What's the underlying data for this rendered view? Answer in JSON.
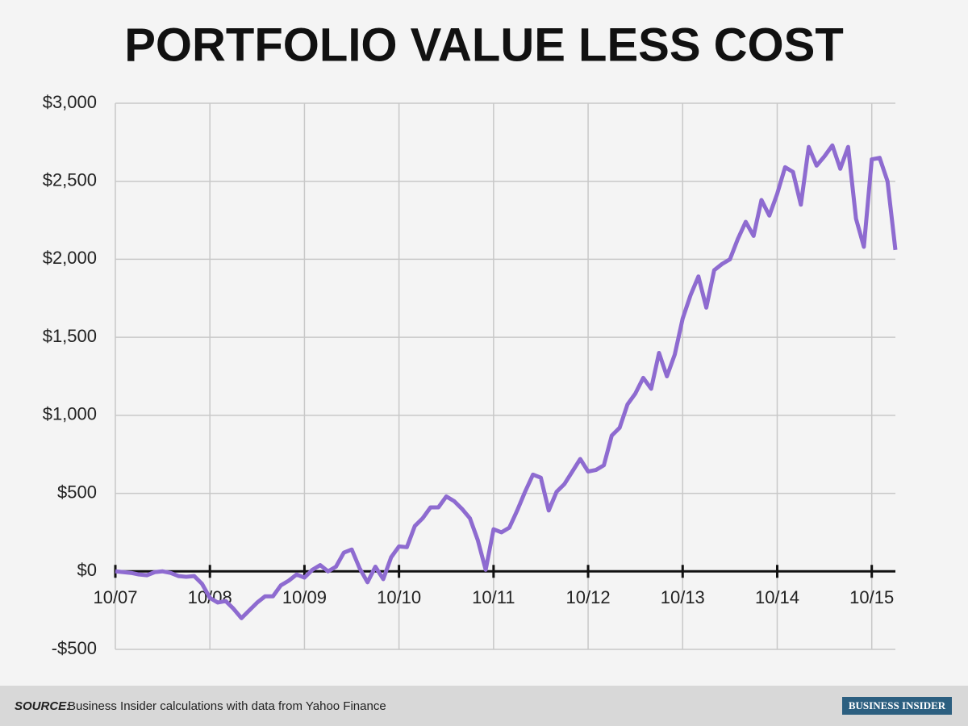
{
  "chart_data": {
    "type": "line",
    "title": "PORTFOLIO VALUE LESS COST",
    "categories": [
      "10/07",
      null,
      null,
      null,
      null,
      null,
      null,
      null,
      null,
      null,
      null,
      null,
      "10/08",
      null,
      null,
      null,
      null,
      null,
      null,
      null,
      null,
      null,
      null,
      null,
      "10/09",
      null,
      null,
      null,
      null,
      null,
      null,
      null,
      null,
      null,
      null,
      null,
      "10/10",
      null,
      null,
      null,
      null,
      null,
      null,
      null,
      null,
      null,
      null,
      null,
      "10/11",
      null,
      null,
      null,
      null,
      null,
      null,
      null,
      null,
      null,
      null,
      null,
      "10/12",
      null,
      null,
      null,
      null,
      null,
      null,
      null,
      null,
      null,
      null,
      null,
      "10/13",
      null,
      null,
      null,
      null,
      null,
      null,
      null,
      null,
      null,
      null,
      null,
      "10/14",
      null,
      null,
      null,
      null,
      null,
      null,
      null,
      null,
      null,
      null,
      null,
      "10/15",
      null,
      null,
      null
    ],
    "series": [
      {
        "color": "#8e6bd0",
        "values": [
          0,
          -5,
          -10,
          -20,
          -25,
          -5,
          0,
          -10,
          -30,
          -35,
          -30,
          -80,
          -170,
          -200,
          -190,
          -240,
          -300,
          -250,
          -200,
          -160,
          -160,
          -90,
          -60,
          -20,
          -40,
          10,
          40,
          0,
          30,
          120,
          140,
          20,
          -70,
          30,
          -50,
          90,
          160,
          155,
          290,
          340,
          410,
          410,
          480,
          450,
          400,
          340,
          200,
          10,
          270,
          250,
          280,
          390,
          510,
          620,
          600,
          390,
          510,
          560,
          640,
          720,
          640,
          650,
          680,
          870,
          920,
          1070,
          1140,
          1240,
          1170,
          1400,
          1250,
          1390,
          1620,
          1770,
          1890,
          1690,
          1930,
          1970,
          2000,
          2130,
          2240,
          2150,
          2380,
          2280,
          2420,
          2590,
          2560,
          2350,
          2720,
          2600,
          2660,
          2730,
          2580,
          2720,
          2260,
          2080,
          2640,
          2650,
          2500,
          2060
        ]
      }
    ],
    "ylim": [
      -500,
      3000
    ],
    "yticks": [
      {
        "value": -500,
        "label": "-$500"
      },
      {
        "value": 0,
        "label": "$0"
      },
      {
        "value": 500,
        "label": "$500"
      },
      {
        "value": 1000,
        "label": "$1,000"
      },
      {
        "value": 1500,
        "label": "$1,500"
      },
      {
        "value": 2000,
        "label": "$2,000"
      },
      {
        "value": 2500,
        "label": "$2,500"
      },
      {
        "value": 3000,
        "label": "$3,000"
      }
    ],
    "grid": true
  },
  "footer": {
    "source_label": "SOURCE:",
    "source_text": "Business Insider calculations with data from Yahoo Finance",
    "logo": "BUSINESS INSIDER"
  }
}
